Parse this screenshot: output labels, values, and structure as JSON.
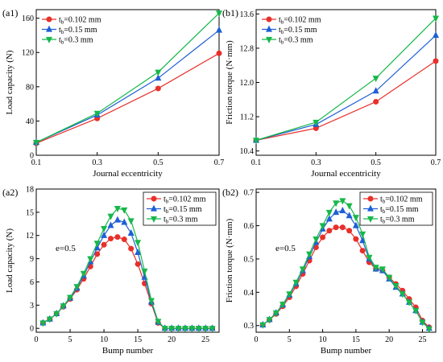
{
  "colors": {
    "series1": "#e8302a",
    "series2": "#1f5fd6",
    "series3": "#16b84a"
  },
  "chart_data": [
    {
      "id": "a1",
      "panel_label": "(a1)",
      "type": "line",
      "xlabel": "Journal eccentricity",
      "ylabel": "Load capacity (N)",
      "xlim": [
        0.1,
        0.7
      ],
      "ylim": [
        0,
        170
      ],
      "xticks": [
        0.1,
        0.3,
        0.5,
        0.7
      ],
      "xtick_labels": [
        "0.1",
        "0.3",
        "0.5",
        "0.7"
      ],
      "yticks": [
        0,
        40,
        80,
        120,
        160
      ],
      "ytick_labels": [
        "0",
        "40",
        "80",
        "120",
        "160"
      ],
      "legend_position": "top-left",
      "x": [
        0.1,
        0.3,
        0.5,
        0.7
      ],
      "series": [
        {
          "name": "t_b=0.102 mm",
          "name_parts": [
            "t",
            "b",
            "=0.102 mm"
          ],
          "marker": "circle",
          "values": [
            14,
            43,
            78,
            119
          ]
        },
        {
          "name": "t_b=0.15 mm",
          "name_parts": [
            "t",
            "b",
            "=0.15 mm"
          ],
          "marker": "triangle-up",
          "values": [
            15,
            47,
            90,
            146
          ]
        },
        {
          "name": "t_b=0.3 mm",
          "name_parts": [
            "t",
            "b",
            "=0.3 mm"
          ],
          "marker": "triangle-down",
          "values": [
            15,
            49,
            97,
            166
          ]
        }
      ]
    },
    {
      "id": "b1",
      "panel_label": "(b1)",
      "type": "line",
      "xlabel": "Journal eccentricity",
      "ylabel": "Friction torque (N·mm)",
      "xlim": [
        0.1,
        0.7
      ],
      "ylim": [
        10.3,
        13.7
      ],
      "xticks": [
        0.1,
        0.3,
        0.5,
        0.7
      ],
      "xtick_labels": [
        "0.1",
        "0.3",
        "0.5",
        "0.7"
      ],
      "yticks": [
        10.4,
        11.2,
        12.0,
        12.8,
        13.6
      ],
      "ytick_labels": [
        "10.4",
        "11.2",
        "12.0",
        "12.8",
        "13.6"
      ],
      "legend_position": "top-left",
      "x": [
        0.1,
        0.3,
        0.5,
        0.7
      ],
      "series": [
        {
          "name": "t_b=0.102 mm",
          "name_parts": [
            "t",
            "b",
            "=0.102 mm"
          ],
          "marker": "circle",
          "values": [
            10.65,
            10.93,
            11.55,
            12.5
          ]
        },
        {
          "name": "t_b=0.15 mm",
          "name_parts": [
            "t",
            "b",
            "=0.15 mm"
          ],
          "marker": "triangle-up",
          "values": [
            10.65,
            11.02,
            11.8,
            13.1
          ]
        },
        {
          "name": "t_b=0.3 mm",
          "name_parts": [
            "t",
            "b",
            "=0.3 mm"
          ],
          "marker": "triangle-down",
          "values": [
            10.65,
            11.07,
            12.1,
            13.5
          ]
        }
      ]
    },
    {
      "id": "a2",
      "panel_label": "(a2)",
      "type": "line",
      "xlabel": "Bump number",
      "ylabel": "Load capacity (N)",
      "annotation": "e=0.5",
      "xlim": [
        0,
        27
      ],
      "ylim": [
        -0.5,
        18
      ],
      "xticks": [
        0,
        5,
        10,
        15,
        20,
        25
      ],
      "xtick_labels": [
        "0",
        "5",
        "10",
        "15",
        "20",
        "25"
      ],
      "yticks": [
        0,
        3,
        6,
        9,
        12,
        15,
        18
      ],
      "ytick_labels": [
        "0",
        "3",
        "6",
        "9",
        "12",
        "15",
        "18"
      ],
      "legend_position": "top-right",
      "x": [
        1,
        2,
        3,
        4,
        5,
        6,
        7,
        8,
        9,
        10,
        11,
        12,
        13,
        14,
        15,
        16,
        17,
        18,
        19,
        20,
        21,
        22,
        23,
        24,
        25,
        26
      ],
      "series": [
        {
          "name": "t_b=0.102 mm",
          "name_parts": [
            "t",
            "b",
            "=0.102 mm"
          ],
          "marker": "circle",
          "values": [
            0.7,
            1.2,
            1.9,
            2.8,
            3.8,
            5.0,
            6.4,
            8.0,
            9.6,
            10.8,
            11.6,
            11.8,
            11.5,
            10.3,
            8.3,
            5.8,
            3.2,
            0.7,
            0,
            0,
            0,
            0,
            0,
            0,
            0,
            0
          ]
        },
        {
          "name": "t_b=0.15 mm",
          "name_parts": [
            "t",
            "b",
            "=0.15 mm"
          ],
          "marker": "triangle-up",
          "values": [
            0.7,
            1.2,
            1.9,
            2.9,
            3.9,
            5.2,
            6.8,
            8.6,
            10.4,
            12.0,
            13.3,
            14.0,
            13.7,
            12.3,
            9.8,
            6.6,
            3.4,
            0.8,
            0,
            0,
            0,
            0,
            0,
            0,
            0,
            0
          ]
        },
        {
          "name": "t_b=0.3 mm",
          "name_parts": [
            "t",
            "b",
            "=0.3 mm"
          ],
          "marker": "triangle-down",
          "values": [
            0.7,
            1.2,
            1.9,
            2.9,
            4.0,
            5.4,
            7.1,
            9.0,
            11.0,
            12.9,
            14.5,
            15.5,
            15.3,
            13.9,
            11.1,
            7.4,
            3.6,
            0.9,
            0,
            0,
            0,
            0,
            0,
            0,
            0,
            0
          ]
        }
      ]
    },
    {
      "id": "b2",
      "panel_label": "(b2)",
      "type": "line",
      "xlabel": "Bump number",
      "ylabel": "Friction torque (N·mm)",
      "annotation": "e=0.5",
      "xlim": [
        0,
        27
      ],
      "ylim": [
        0.28,
        0.71
      ],
      "xticks": [
        0,
        5,
        10,
        15,
        20,
        25
      ],
      "xtick_labels": [
        "0",
        "5",
        "10",
        "15",
        "20",
        "25"
      ],
      "yticks": [
        0.3,
        0.4,
        0.5,
        0.6,
        0.7
      ],
      "ytick_labels": [
        "0.3",
        "0.4",
        "0.5",
        "0.6",
        "0.7"
      ],
      "legend_position": "top-right",
      "x": [
        1,
        2,
        3,
        4,
        5,
        6,
        7,
        8,
        9,
        10,
        11,
        12,
        13,
        14,
        15,
        16,
        17,
        18,
        19,
        20,
        21,
        22,
        23,
        24,
        25,
        26
      ],
      "series": [
        {
          "name": "t_b=0.102 mm",
          "name_parts": [
            "t",
            "b",
            "=0.102 mm"
          ],
          "marker": "circle",
          "values": [
            0.302,
            0.317,
            0.335,
            0.358,
            0.385,
            0.418,
            0.455,
            0.495,
            0.535,
            0.565,
            0.585,
            0.595,
            0.595,
            0.585,
            0.56,
            0.525,
            0.49,
            0.47,
            0.465,
            0.445,
            0.425,
            0.405,
            0.38,
            0.355,
            0.315,
            0.295
          ]
        },
        {
          "name": "t_b=0.15 mm",
          "name_parts": [
            "t",
            "b",
            "=0.15 mm"
          ],
          "marker": "triangle-up",
          "values": [
            0.302,
            0.318,
            0.338,
            0.362,
            0.392,
            0.426,
            0.465,
            0.507,
            0.55,
            0.59,
            0.62,
            0.64,
            0.645,
            0.63,
            0.6,
            0.555,
            0.5,
            0.47,
            0.465,
            0.44,
            0.415,
            0.395,
            0.37,
            0.345,
            0.31,
            0.292
          ]
        },
        {
          "name": "t_b=0.3 mm",
          "name_parts": [
            "t",
            "b",
            "=0.3 mm"
          ],
          "marker": "triangle-down",
          "values": [
            0.302,
            0.318,
            0.338,
            0.364,
            0.395,
            0.43,
            0.47,
            0.515,
            0.56,
            0.6,
            0.64,
            0.668,
            0.675,
            0.66,
            0.625,
            0.575,
            0.505,
            0.475,
            0.47,
            0.445,
            0.42,
            0.395,
            0.37,
            0.345,
            0.31,
            0.29
          ]
        }
      ]
    }
  ]
}
